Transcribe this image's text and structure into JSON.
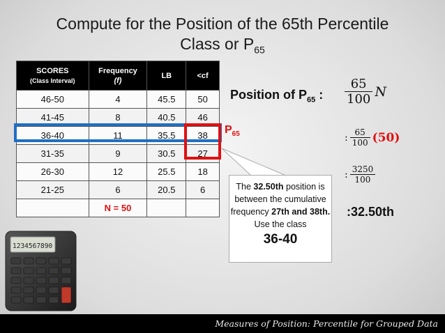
{
  "title": {
    "line1": "Compute for the Position of the 65th Percentile",
    "line2_main": "Class or P",
    "line2_sub": "65"
  },
  "table": {
    "headers": {
      "scores": "SCORES",
      "scores_sub": "(Class Interval)",
      "frequency": "Frequency",
      "frequency_sub": "(f)",
      "lb": "LB",
      "cf": "<cf"
    },
    "rows": [
      {
        "scores": "46-50",
        "frequency": "4",
        "lb": "45.5",
        "cf": "50"
      },
      {
        "scores": "41-45",
        "frequency": "8",
        "lb": "40.5",
        "cf": "46"
      },
      {
        "scores": "36-40",
        "frequency": "11",
        "lb": "35.5",
        "cf": "38"
      },
      {
        "scores": "31-35",
        "frequency": "9",
        "lb": "30.5",
        "cf": "27"
      },
      {
        "scores": "26-30",
        "frequency": "12",
        "lb": "25.5",
        "cf": "18"
      },
      {
        "scores": "21-25",
        "frequency": "6",
        "lb": "20.5",
        "cf": "6"
      }
    ],
    "total": "N = 50"
  },
  "marker": {
    "main": "P",
    "sub": "65"
  },
  "callout": {
    "t1": "The ",
    "t2": "32.50th",
    "t3": " position is between the cumulative frequency ",
    "t4": "27th and 38th.",
    "t5": " Use the class",
    "t6": "36-40"
  },
  "position": {
    "label_main": "Position of P",
    "label_sub": "65",
    "label_colon": " :",
    "step1_num": "65",
    "step1_den": "100",
    "step1_var": "N",
    "step2_colon": ":",
    "step2_num": "65",
    "step2_den": "100",
    "step2_paren": "(50)",
    "step3_colon": ":",
    "step3_num": "3250",
    "step3_den": "100",
    "result": ":32.50th"
  },
  "footer": "Measures of Position: Percentile for Grouped Data",
  "colors": {
    "highlight_row": "#1f6fc5",
    "highlight_cf": "#e01010",
    "accent_red": "#e01010"
  }
}
